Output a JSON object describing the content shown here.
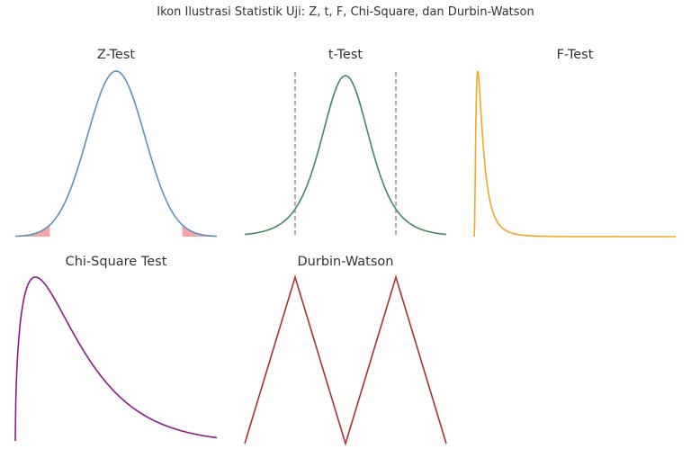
{
  "figure": {
    "suptitle": "Ikon Ilustrasi Statistik Uji: Z, t, F, Chi-Square, dan Durbin-Watson"
  },
  "colors": {
    "z_curve": "#5b8fbf",
    "z_tail": "#f4a6a6",
    "t_curve": "#3d8a5a",
    "t_crit": "#888888",
    "f_curve": "#f5a623",
    "chi_curve": "#8b1a8b",
    "dw_line": "#a83232"
  },
  "chart_data": [
    {
      "id": "z",
      "type": "line",
      "title": "Z-Test",
      "distribution": "normal",
      "xlim": [
        -3.5,
        3.5
      ],
      "ylim": [
        0,
        0.4
      ],
      "tails_shaded": true,
      "critical_value": 2.3
    },
    {
      "id": "t",
      "type": "line",
      "title": "t-Test",
      "distribution": "t",
      "xlim": [
        -4,
        4
      ],
      "critical_lines": [
        -2,
        2
      ],
      "critical_style": "dashed"
    },
    {
      "id": "f",
      "type": "line",
      "title": "F-Test",
      "distribution": "F",
      "xlim": [
        0,
        5
      ]
    },
    {
      "id": "chi",
      "type": "line",
      "title": "Chi-Square Test",
      "distribution": "chi-square",
      "xlim": [
        0,
        10
      ]
    },
    {
      "id": "dw",
      "type": "line",
      "title": "Durbin-Watson",
      "x": [
        0,
        1,
        2,
        3,
        4
      ],
      "y": [
        0,
        1,
        0,
        1,
        0
      ],
      "xlim": [
        0,
        4
      ],
      "ylim": [
        0,
        1
      ]
    }
  ]
}
